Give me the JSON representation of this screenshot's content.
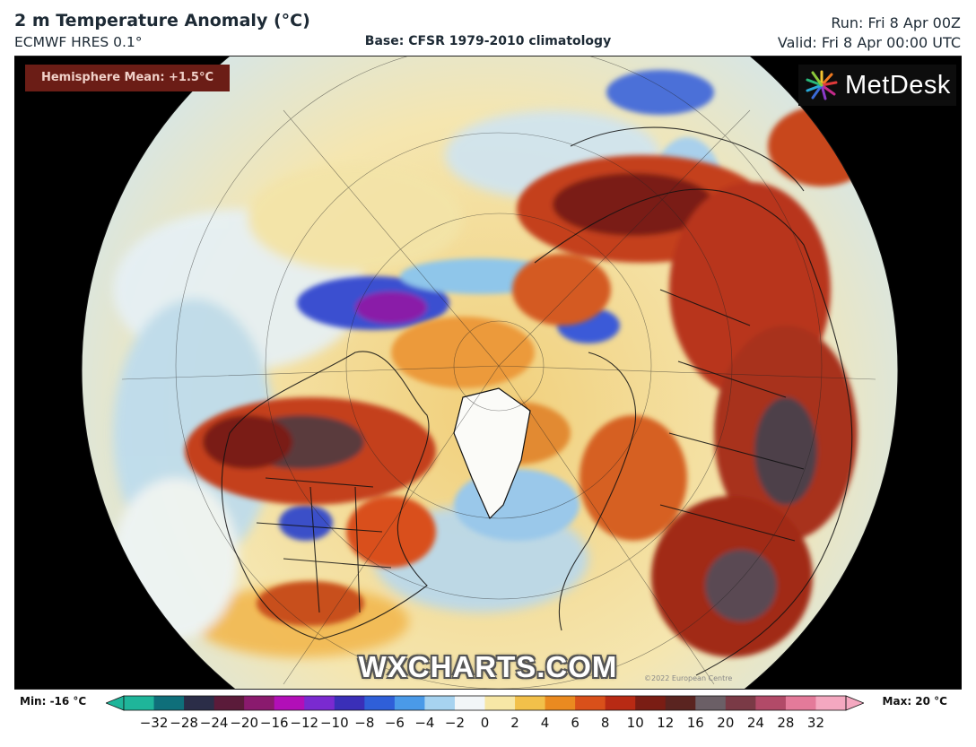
{
  "header": {
    "title": "2 m Temperature Anomaly (°C)",
    "model": "ECMWF HRES 0.1°",
    "base": "Base: CFSR 1979-2010 climatology",
    "run": "Run: Fri 8 Apr 00Z",
    "valid": "Valid: Fri 8 Apr 00:00 UTC"
  },
  "map": {
    "hemisphere_mean": "Hemisphere Mean: +1.5°C",
    "logo_text": "MetDesk",
    "watermark": "WXCHARTS.COM",
    "copyright": "©2022 European Centre"
  },
  "colorbar": {
    "min_label": "Min: -16 °C",
    "max_label": "Max: 20 °C",
    "ticks": [
      "−32",
      "−28",
      "−24",
      "−20",
      "−16",
      "−12",
      "−10",
      "−8",
      "−6",
      "−4",
      "−2",
      "0",
      "2",
      "4",
      "6",
      "8",
      "10",
      "12",
      "16",
      "20",
      "24",
      "28",
      "32"
    ],
    "colors": [
      "#1fb59a",
      "#0f6f7a",
      "#2b2d48",
      "#5b1b3a",
      "#8a1a6e",
      "#b20fb8",
      "#7a2ad0",
      "#3a2fb8",
      "#2f5fd8",
      "#4a9ae8",
      "#a7d3f0",
      "#f2f6f8",
      "#f7e7a6",
      "#f2c04a",
      "#ea8a20",
      "#d9501a",
      "#b82a14",
      "#7a1d14",
      "#5a2420",
      "#6b5f66",
      "#7a3a46",
      "#b24a68",
      "#e47a9a",
      "#f4a8c0"
    ]
  }
}
